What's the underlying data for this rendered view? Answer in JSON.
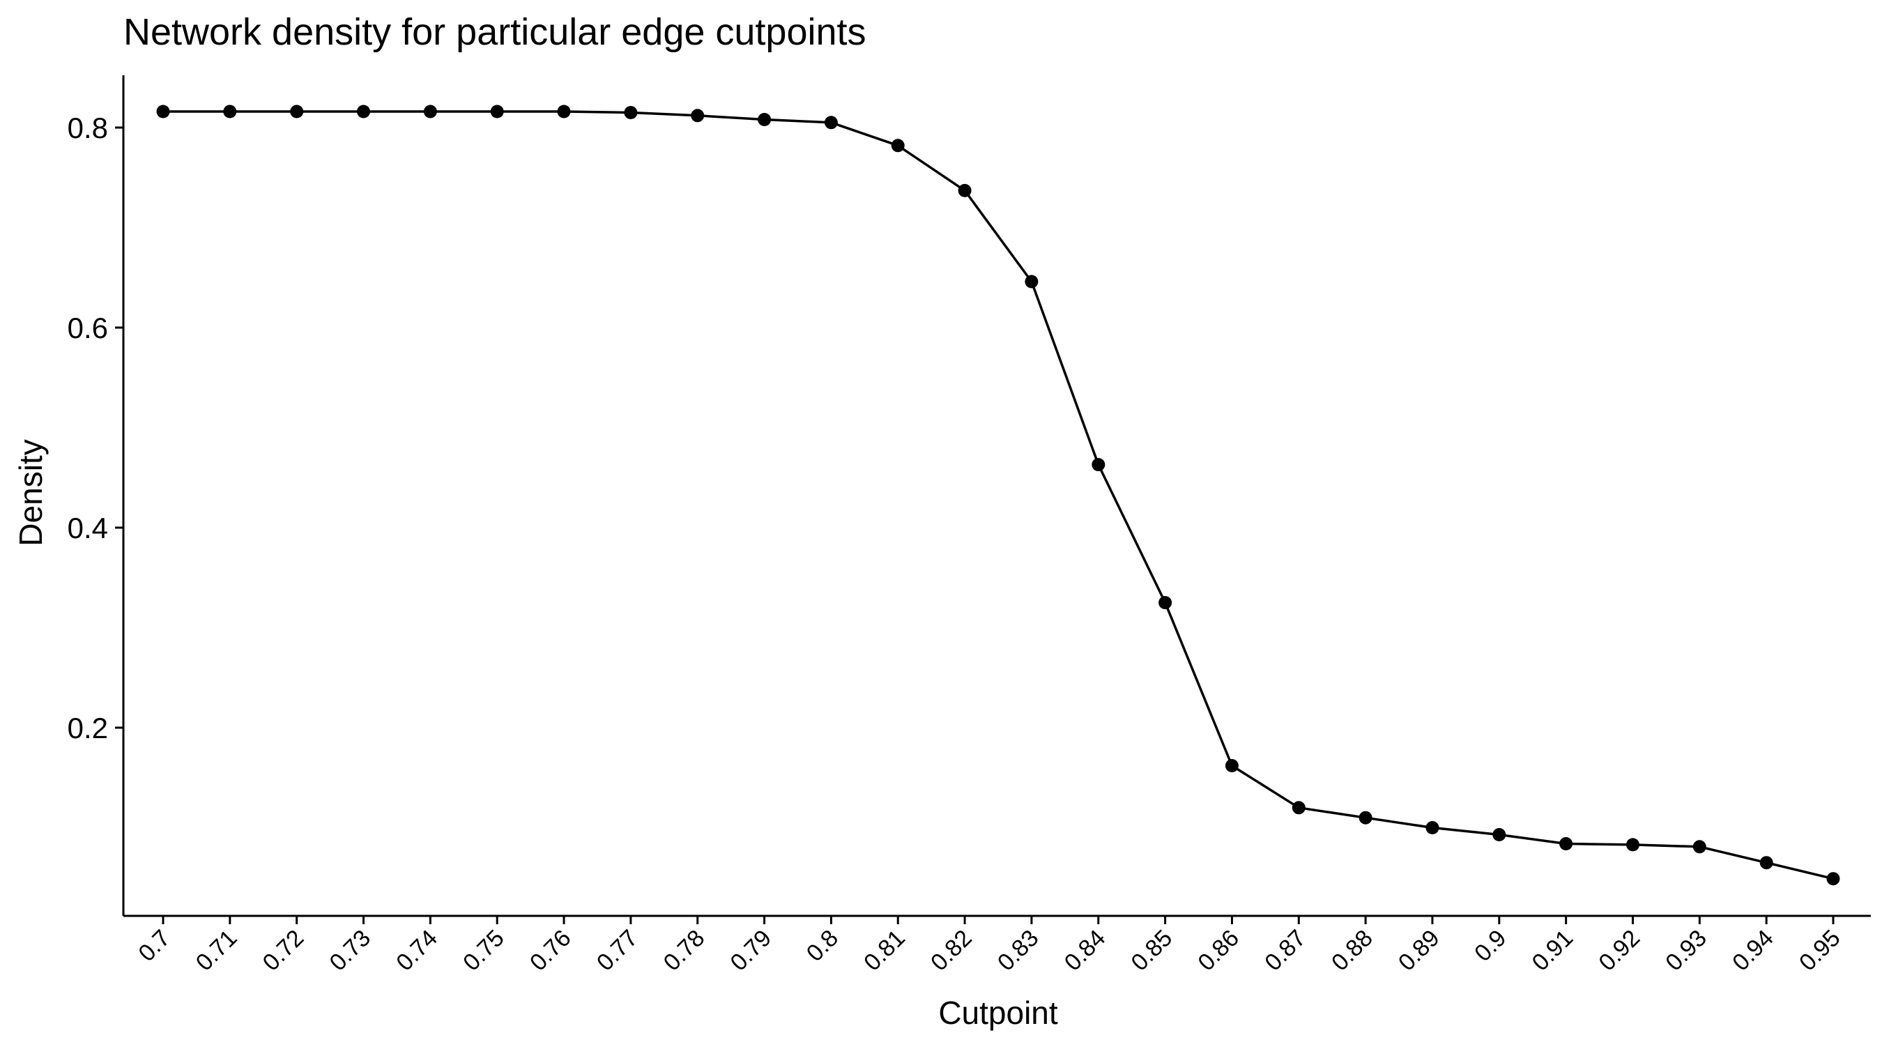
{
  "chart_data": {
    "type": "line",
    "title": "Network density for particular edge cutpoints",
    "xlabel": "Cutpoint",
    "ylabel": "Density",
    "categories": [
      "0.7",
      "0.71",
      "0.72",
      "0.73",
      "0.74",
      "0.75",
      "0.76",
      "0.77",
      "0.78",
      "0.79",
      "0.8",
      "0.81",
      "0.82",
      "0.83",
      "0.84",
      "0.85",
      "0.86",
      "0.87",
      "0.88",
      "0.89",
      "0.9",
      "0.91",
      "0.92",
      "0.93",
      "0.94",
      "0.95"
    ],
    "series": [
      {
        "values": [
          0.816,
          0.816,
          0.816,
          0.816,
          0.816,
          0.816,
          0.816,
          0.815,
          0.812,
          0.808,
          0.805,
          0.782,
          0.737,
          0.646,
          0.463,
          0.325,
          0.162,
          0.12,
          0.11,
          0.1,
          0.093,
          0.084,
          0.083,
          0.081,
          0.065,
          0.049
        ]
      }
    ],
    "ylim": [
      0.02,
      0.85
    ],
    "yticks": [
      0.2,
      0.4,
      0.6,
      0.8
    ],
    "ytick_labels": [
      "0.2",
      "0.4",
      "0.6",
      "0.8"
    ],
    "grid": false,
    "legend": "none",
    "line_color": "#000000",
    "point_color": "#000000"
  }
}
